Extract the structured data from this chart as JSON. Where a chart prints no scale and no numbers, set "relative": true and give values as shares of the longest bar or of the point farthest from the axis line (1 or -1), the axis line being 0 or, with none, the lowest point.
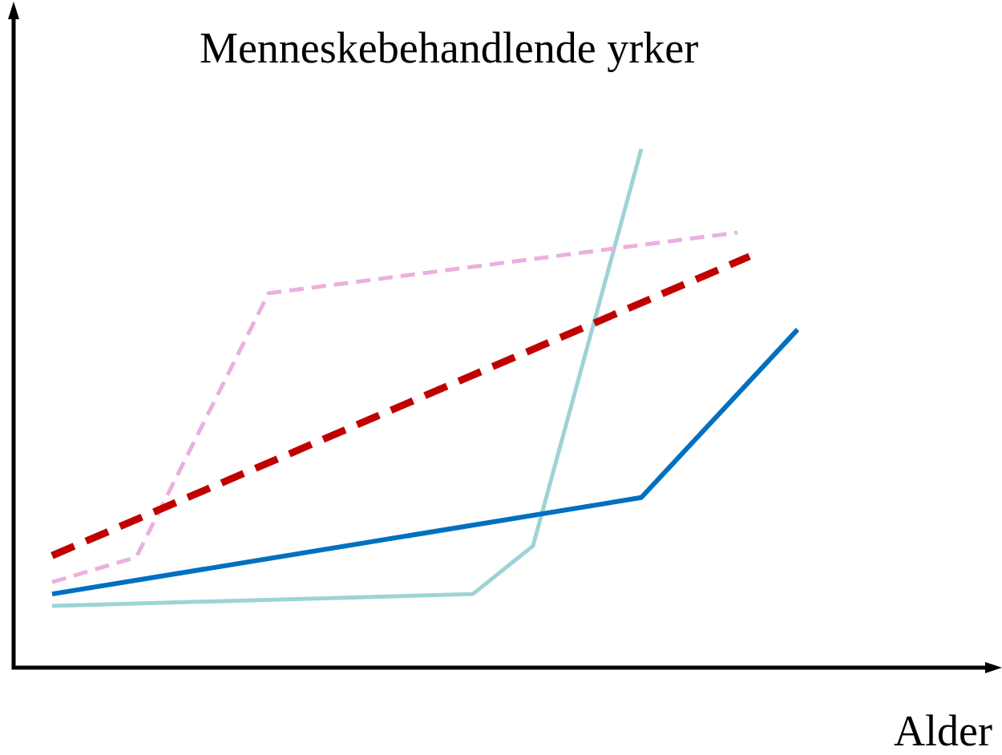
{
  "chart_data": {
    "type": "line",
    "title": "Menneskebehandlende yrker",
    "xlabel": "Alder",
    "relative": true,
    "legend": false,
    "marker": "none",
    "categories": [
      null,
      null,
      null,
      null,
      null,
      null,
      null,
      null,
      null,
      null,
      null,
      null,
      null,
      null,
      null,
      null,
      null,
      null,
      null,
      null,
      null,
      null,
      null,
      null,
      null,
      null,
      null,
      null,
      null,
      null,
      null,
      null,
      null,
      null,
      null,
      null,
      null,
      null,
      null,
      null,
      null,
      null,
      null,
      null,
      null,
      null,
      null,
      null,
      null,
      null,
      null,
      null,
      null,
      null,
      null,
      null,
      null,
      null,
      null,
      null,
      null,
      null,
      null
    ],
    "series": [
      {
        "color": "#c00000",
        "line_style": "dashed",
        "values": [
          0.216,
          null,
          null,
          null,
          null,
          null,
          null,
          null,
          null,
          null,
          null,
          null,
          null,
          null,
          null,
          null,
          null,
          null,
          null,
          null,
          null,
          null,
          null,
          null,
          null,
          null,
          null,
          null,
          null,
          null,
          null,
          null,
          null,
          null,
          null,
          null,
          null,
          null,
          null,
          null,
          null,
          null,
          null,
          null,
          null,
          null,
          null,
          null,
          null,
          null,
          null,
          null,
          null,
          null,
          null,
          null,
          null,
          null,
          0.793,
          null,
          null,
          null,
          null
        ]
      },
      {
        "color": "#eab0e0",
        "line_style": "dashed",
        "values": [
          0.165,
          null,
          null,
          null,
          null,
          null,
          null,
          0.213,
          null,
          null,
          null,
          null,
          null,
          null,
          null,
          null,
          null,
          null,
          0.722,
          null,
          null,
          null,
          null,
          null,
          null,
          null,
          null,
          null,
          null,
          null,
          null,
          null,
          null,
          null,
          null,
          null,
          null,
          null,
          null,
          null,
          null,
          null,
          null,
          null,
          null,
          null,
          null,
          null,
          null,
          null,
          null,
          null,
          null,
          null,
          null,
          null,
          null,
          0.839,
          null,
          null,
          null,
          null,
          null
        ]
      },
      {
        "color": "#0070c0",
        "line_style": "solid",
        "values": [
          0.142,
          null,
          null,
          null,
          null,
          null,
          null,
          null,
          null,
          null,
          null,
          null,
          null,
          null,
          null,
          null,
          null,
          null,
          null,
          null,
          null,
          null,
          null,
          null,
          null,
          null,
          null,
          null,
          null,
          null,
          null,
          null,
          null,
          null,
          null,
          null,
          null,
          null,
          null,
          null,
          null,
          null,
          null,
          null,
          null,
          null,
          null,
          null,
          null,
          0.328,
          null,
          null,
          null,
          null,
          null,
          null,
          null,
          null,
          null,
          null,
          null,
          null,
          0.652
        ]
      },
      {
        "color": "#9dd3d6",
        "line_style": "solid",
        "values": [
          0.119,
          null,
          null,
          null,
          null,
          null,
          null,
          null,
          null,
          null,
          null,
          null,
          null,
          null,
          null,
          null,
          null,
          null,
          null,
          null,
          null,
          null,
          null,
          null,
          null,
          null,
          null,
          null,
          null,
          null,
          null,
          null,
          null,
          null,
          null,
          0.142,
          null,
          null,
          null,
          null,
          0.235,
          null,
          null,
          null,
          null,
          null,
          null,
          null,
          null,
          1,
          null,
          null,
          null,
          null,
          null,
          null,
          null,
          null,
          null,
          null,
          null,
          null,
          null
        ]
      }
    ]
  }
}
